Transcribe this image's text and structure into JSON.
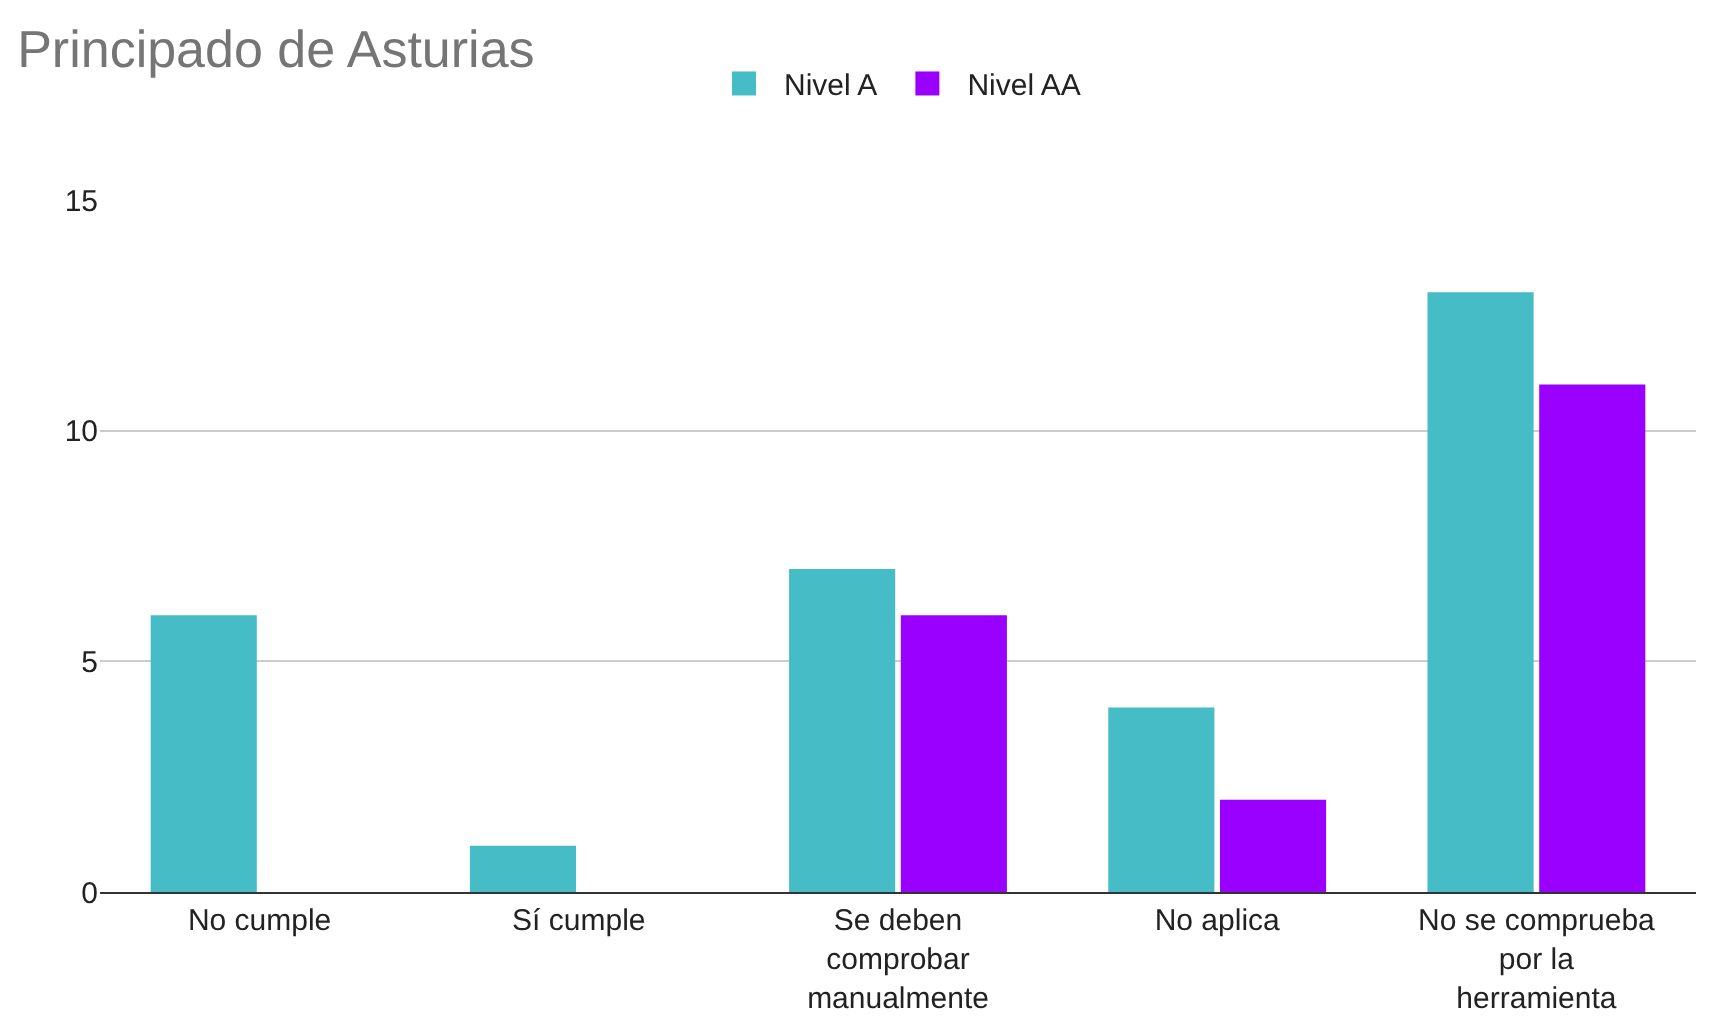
{
  "chart_data": {
    "type": "bar",
    "title": "Principado de Asturias",
    "categories": [
      "No cumple",
      "Sí cumple",
      "Se deben comprobar manualmente",
      "No aplica",
      "No se comprueba por la herramienta"
    ],
    "series": [
      {
        "name": "Nivel A",
        "color": "#46bdc6",
        "values": [
          6,
          1,
          7,
          4,
          13
        ]
      },
      {
        "name": "Nivel AA",
        "color": "#9900ff",
        "values": [
          0,
          0,
          6,
          2,
          11
        ]
      }
    ],
    "ylim": [
      0,
      15
    ],
    "yticks": [
      0,
      5,
      10,
      15
    ],
    "grid": "y",
    "legend": "top"
  }
}
